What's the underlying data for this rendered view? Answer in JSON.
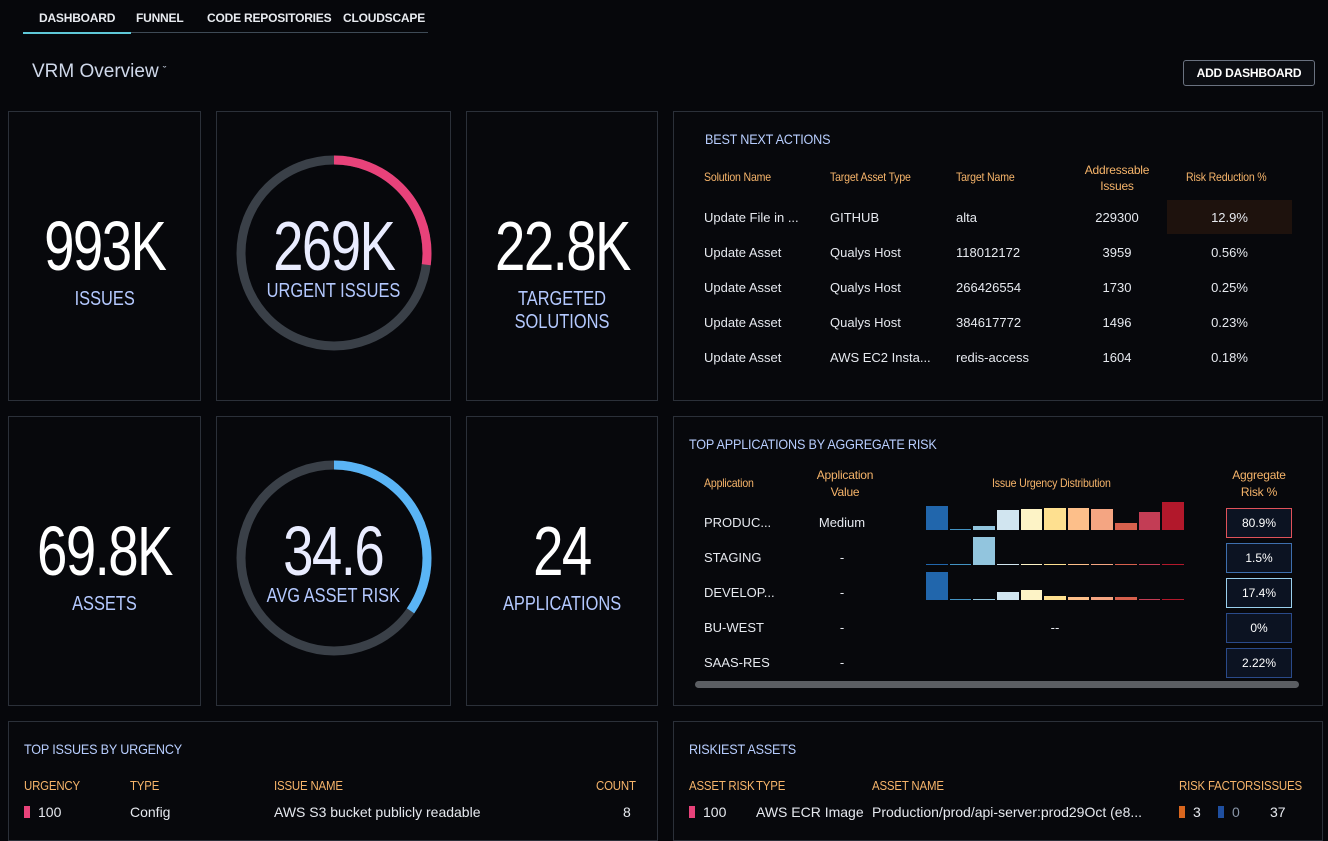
{
  "tabs": [
    {
      "label": "DASHBOARD",
      "active": true
    },
    {
      "label": "FUNNEL",
      "active": false
    },
    {
      "label": "CODE REPOSITORIES",
      "active": false
    },
    {
      "label": "CLOUDSCAPE",
      "active": false
    }
  ],
  "page_title": "VRM Overview",
  "add_dashboard_label": "ADD DASHBOARD",
  "kpis": {
    "issues": {
      "value": "993K",
      "label": "ISSUES"
    },
    "urgent": {
      "value": "269K",
      "label": "URGENT ISSUES",
      "gauge_fraction": 0.27,
      "gauge_color": "#e8427a"
    },
    "targeted": {
      "value": "22.8K",
      "label": "TARGETED SOLUTIONS"
    },
    "assets": {
      "value": "69.8K",
      "label": "ASSETS"
    },
    "avg_risk": {
      "value": "34.6",
      "label": "AVG ASSET RISK",
      "gauge_fraction": 0.346,
      "gauge_color": "#5ab4f5"
    },
    "applications": {
      "value": "24",
      "label": "APPLICATIONS"
    }
  },
  "best_next_actions": {
    "title": "BEST NEXT ACTIONS",
    "headers": [
      "Solution Name",
      "Target Asset Type",
      "Target Name",
      "Addressable Issues",
      "Risk Reduction %"
    ],
    "rows": [
      [
        "Update File in ...",
        "GITHUB",
        "alta",
        "229300",
        "12.9%"
      ],
      [
        "Update Asset",
        "Qualys Host",
        "118012172",
        "3959",
        "0.56%"
      ],
      [
        "Update Asset",
        "Qualys Host",
        "266426554",
        "1730",
        "0.25%"
      ],
      [
        "Update Asset",
        "Qualys Host",
        "384617772",
        "1496",
        "0.23%"
      ],
      [
        "Update Asset",
        "AWS EC2 Insta...",
        "redis-access",
        "1604",
        "0.18%"
      ]
    ]
  },
  "top_applications": {
    "title": "TOP APPLICATIONS BY AGGREGATE RISK",
    "headers": [
      "Application",
      "Application Value",
      "Issue Urgency Distribution",
      "Aggregate Risk %"
    ],
    "rows": [
      {
        "app": "PRODUC...",
        "value": "Medium",
        "risk": "80.9%",
        "border": "#e0525a",
        "dist": [
          0.85,
          0.05,
          0.15,
          0.7,
          0.75,
          0.8,
          0.8,
          0.75,
          0.25,
          0.65,
          1.0
        ]
      },
      {
        "app": "STAGING",
        "value": "-",
        "risk": "1.5%",
        "border": "#3e6fae",
        "dist": [
          0.05,
          0.02,
          1.0,
          0.05,
          0.05,
          0.05,
          0.05,
          0.05,
          0.05,
          0.05,
          0.05
        ]
      },
      {
        "app": "DEVELOP...",
        "value": "-",
        "risk": "17.4%",
        "border": "#9ad0ee",
        "dist": [
          1.0,
          0.05,
          0.05,
          0.3,
          0.35,
          0.15,
          0.1,
          0.1,
          0.1,
          0.05,
          0.05
        ]
      },
      {
        "app": "BU-WEST",
        "value": "-",
        "risk": "0%",
        "border": "#2a4a8a",
        "dist_text": "--"
      },
      {
        "app": "SAAS-RES",
        "value": "-",
        "risk": "2.22%",
        "border": "#2a4a8a"
      }
    ],
    "dist_colors": [
      "#2166ac",
      "#4393c3",
      "#92c5de",
      "#d1e5f0",
      "#fdf3c6",
      "#fee090",
      "#fdbf8a",
      "#f4a582",
      "#d6604d",
      "#c33d55",
      "#b2182b"
    ]
  },
  "top_issues": {
    "title": "TOP ISSUES BY URGENCY",
    "headers": [
      "URGENCY",
      "TYPE",
      "ISSUE NAME",
      "COUNT"
    ],
    "rows": [
      {
        "urgency": "100",
        "type": "Config",
        "name": "AWS S3 bucket publicly readable",
        "count": "8"
      }
    ],
    "urgency_color": "#e8427a"
  },
  "riskiest_assets": {
    "title": "RISKIEST ASSETS",
    "headers": [
      "ASSET RISK",
      "TYPE",
      "ASSET NAME",
      "RISK FACTORS",
      "ISSUES"
    ],
    "rows": [
      {
        "risk": "100",
        "type": "AWS ECR Image",
        "name": "Production/prod/api-server:prod29Oct (e8...",
        "rf_a": "3",
        "rf_b": "0",
        "issues": "37"
      }
    ],
    "colors": {
      "risk": "#e8427a",
      "rf_a": "#d9661e",
      "rf_b": "#1f4fa0"
    }
  }
}
